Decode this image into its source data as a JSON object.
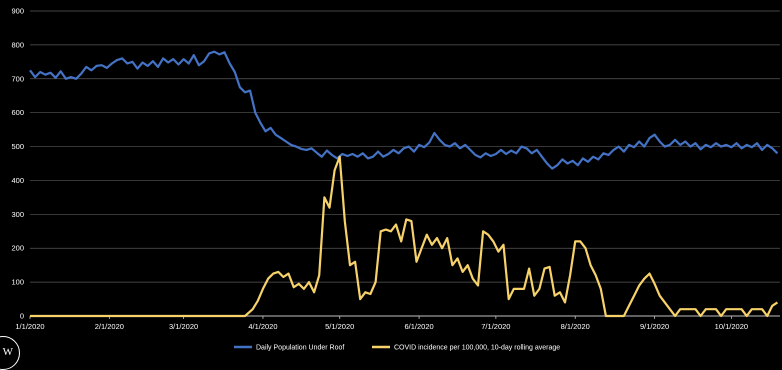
{
  "chart_data": {
    "type": "line",
    "title": "",
    "xlabel": "",
    "ylabel": "",
    "ylim": [
      0,
      900
    ],
    "yticks": [
      0,
      100,
      200,
      300,
      400,
      500,
      600,
      700,
      800,
      900
    ],
    "xlim": [
      "2020-01-01",
      "2020-10-20"
    ],
    "xticks": [
      {
        "date": "2020-01-01",
        "label": "1/1/2020"
      },
      {
        "date": "2020-02-01",
        "label": "2/1/2020"
      },
      {
        "date": "2020-03-01",
        "label": "3/1/2020"
      },
      {
        "date": "2020-04-01",
        "label": "4/1/2020"
      },
      {
        "date": "2020-05-01",
        "label": "5/1/2020"
      },
      {
        "date": "2020-06-01",
        "label": "6/1/2020"
      },
      {
        "date": "2020-07-01",
        "label": "7/1/2020"
      },
      {
        "date": "2020-08-01",
        "label": "8/1/2020"
      },
      {
        "date": "2020-09-01",
        "label": "9/1/2020"
      },
      {
        "date": "2020-10-01",
        "label": "10/1/2020"
      }
    ],
    "grid": "horizontal",
    "legend_position": "bottom",
    "series": [
      {
        "name": "Daily Population Under Roof",
        "color": "#4472C4",
        "points": [
          [
            "2020-01-01",
            725
          ],
          [
            "2020-01-03",
            705
          ],
          [
            "2020-01-05",
            720
          ],
          [
            "2020-01-07",
            712
          ],
          [
            "2020-01-09",
            718
          ],
          [
            "2020-01-11",
            703
          ],
          [
            "2020-01-13",
            722
          ],
          [
            "2020-01-15",
            700
          ],
          [
            "2020-01-17",
            705
          ],
          [
            "2020-01-19",
            700
          ],
          [
            "2020-01-21",
            715
          ],
          [
            "2020-01-23",
            735
          ],
          [
            "2020-01-25",
            725
          ],
          [
            "2020-01-27",
            738
          ],
          [
            "2020-01-29",
            740
          ],
          [
            "2020-01-31",
            732
          ],
          [
            "2020-02-02",
            745
          ],
          [
            "2020-02-04",
            755
          ],
          [
            "2020-02-06",
            760
          ],
          [
            "2020-02-08",
            745
          ],
          [
            "2020-02-10",
            750
          ],
          [
            "2020-02-12",
            730
          ],
          [
            "2020-02-14",
            748
          ],
          [
            "2020-02-16",
            738
          ],
          [
            "2020-02-18",
            752
          ],
          [
            "2020-02-20",
            735
          ],
          [
            "2020-02-22",
            760
          ],
          [
            "2020-02-24",
            748
          ],
          [
            "2020-02-26",
            758
          ],
          [
            "2020-02-28",
            742
          ],
          [
            "2020-03-01",
            758
          ],
          [
            "2020-03-03",
            745
          ],
          [
            "2020-03-05",
            770
          ],
          [
            "2020-03-07",
            740
          ],
          [
            "2020-03-09",
            752
          ],
          [
            "2020-03-11",
            775
          ],
          [
            "2020-03-13",
            780
          ],
          [
            "2020-03-15",
            772
          ],
          [
            "2020-03-17",
            778
          ],
          [
            "2020-03-19",
            745
          ],
          [
            "2020-03-21",
            720
          ],
          [
            "2020-03-23",
            675
          ],
          [
            "2020-03-25",
            660
          ],
          [
            "2020-03-27",
            665
          ],
          [
            "2020-03-29",
            600
          ],
          [
            "2020-03-31",
            570
          ],
          [
            "2020-04-02",
            545
          ],
          [
            "2020-04-04",
            555
          ],
          [
            "2020-04-06",
            535
          ],
          [
            "2020-04-08",
            525
          ],
          [
            "2020-04-10",
            515
          ],
          [
            "2020-04-12",
            505
          ],
          [
            "2020-04-14",
            500
          ],
          [
            "2020-04-16",
            493
          ],
          [
            "2020-04-18",
            490
          ],
          [
            "2020-04-20",
            495
          ],
          [
            "2020-04-22",
            482
          ],
          [
            "2020-04-24",
            470
          ],
          [
            "2020-04-26",
            488
          ],
          [
            "2020-04-28",
            475
          ],
          [
            "2020-04-30",
            465
          ],
          [
            "2020-05-02",
            478
          ],
          [
            "2020-05-04",
            472
          ],
          [
            "2020-05-06",
            478
          ],
          [
            "2020-05-08",
            470
          ],
          [
            "2020-05-10",
            480
          ],
          [
            "2020-05-12",
            465
          ],
          [
            "2020-05-14",
            470
          ],
          [
            "2020-05-16",
            485
          ],
          [
            "2020-05-18",
            470
          ],
          [
            "2020-05-20",
            478
          ],
          [
            "2020-05-22",
            490
          ],
          [
            "2020-05-24",
            480
          ],
          [
            "2020-05-26",
            495
          ],
          [
            "2020-05-28",
            500
          ],
          [
            "2020-05-30",
            485
          ],
          [
            "2020-06-01",
            505
          ],
          [
            "2020-06-03",
            498
          ],
          [
            "2020-06-05",
            512
          ],
          [
            "2020-06-07",
            540
          ],
          [
            "2020-06-09",
            520
          ],
          [
            "2020-06-11",
            505
          ],
          [
            "2020-06-13",
            500
          ],
          [
            "2020-06-15",
            510
          ],
          [
            "2020-06-17",
            495
          ],
          [
            "2020-06-19",
            505
          ],
          [
            "2020-06-21",
            490
          ],
          [
            "2020-06-23",
            475
          ],
          [
            "2020-06-25",
            468
          ],
          [
            "2020-06-27",
            480
          ],
          [
            "2020-06-29",
            472
          ],
          [
            "2020-07-01",
            478
          ],
          [
            "2020-07-03",
            490
          ],
          [
            "2020-07-05",
            478
          ],
          [
            "2020-07-07",
            488
          ],
          [
            "2020-07-09",
            480
          ],
          [
            "2020-07-11",
            500
          ],
          [
            "2020-07-13",
            495
          ],
          [
            "2020-07-15",
            480
          ],
          [
            "2020-07-17",
            490
          ],
          [
            "2020-07-19",
            470
          ],
          [
            "2020-07-21",
            450
          ],
          [
            "2020-07-23",
            435
          ],
          [
            "2020-07-25",
            445
          ],
          [
            "2020-07-27",
            462
          ],
          [
            "2020-07-29",
            450
          ],
          [
            "2020-07-31",
            458
          ],
          [
            "2020-08-02",
            445
          ],
          [
            "2020-08-04",
            465
          ],
          [
            "2020-08-06",
            455
          ],
          [
            "2020-08-08",
            470
          ],
          [
            "2020-08-10",
            462
          ],
          [
            "2020-08-12",
            480
          ],
          [
            "2020-08-14",
            475
          ],
          [
            "2020-08-16",
            490
          ],
          [
            "2020-08-18",
            500
          ],
          [
            "2020-08-20",
            485
          ],
          [
            "2020-08-22",
            505
          ],
          [
            "2020-08-24",
            498
          ],
          [
            "2020-08-26",
            515
          ],
          [
            "2020-08-28",
            500
          ],
          [
            "2020-08-30",
            525
          ],
          [
            "2020-09-01",
            535
          ],
          [
            "2020-09-03",
            515
          ],
          [
            "2020-09-05",
            500
          ],
          [
            "2020-09-07",
            505
          ],
          [
            "2020-09-09",
            520
          ],
          [
            "2020-09-11",
            505
          ],
          [
            "2020-09-13",
            515
          ],
          [
            "2020-09-15",
            500
          ],
          [
            "2020-09-17",
            510
          ],
          [
            "2020-09-19",
            492
          ],
          [
            "2020-09-21",
            505
          ],
          [
            "2020-09-23",
            498
          ],
          [
            "2020-09-25",
            510
          ],
          [
            "2020-09-27",
            500
          ],
          [
            "2020-09-29",
            505
          ],
          [
            "2020-10-01",
            498
          ],
          [
            "2020-10-03",
            510
          ],
          [
            "2020-10-05",
            495
          ],
          [
            "2020-10-07",
            505
          ],
          [
            "2020-10-09",
            498
          ],
          [
            "2020-10-11",
            510
          ],
          [
            "2020-10-13",
            490
          ],
          [
            "2020-10-15",
            505
          ],
          [
            "2020-10-17",
            495
          ],
          [
            "2020-10-19",
            480
          ]
        ]
      },
      {
        "name": "COVID incidence per 100,000, 10-day rolling average",
        "color": "#F7D26A",
        "points": [
          [
            "2020-01-01",
            0
          ],
          [
            "2020-03-25",
            0
          ],
          [
            "2020-03-28",
            20
          ],
          [
            "2020-03-30",
            45
          ],
          [
            "2020-04-01",
            80
          ],
          [
            "2020-04-03",
            110
          ],
          [
            "2020-04-05",
            125
          ],
          [
            "2020-04-07",
            130
          ],
          [
            "2020-04-09",
            115
          ],
          [
            "2020-04-11",
            125
          ],
          [
            "2020-04-13",
            85
          ],
          [
            "2020-04-15",
            95
          ],
          [
            "2020-04-17",
            80
          ],
          [
            "2020-04-19",
            100
          ],
          [
            "2020-04-21",
            70
          ],
          [
            "2020-04-23",
            120
          ],
          [
            "2020-04-25",
            350
          ],
          [
            "2020-04-27",
            320
          ],
          [
            "2020-04-29",
            430
          ],
          [
            "2020-05-01",
            470
          ],
          [
            "2020-05-03",
            280
          ],
          [
            "2020-05-05",
            150
          ],
          [
            "2020-05-07",
            160
          ],
          [
            "2020-05-09",
            50
          ],
          [
            "2020-05-11",
            70
          ],
          [
            "2020-05-13",
            65
          ],
          [
            "2020-05-15",
            100
          ],
          [
            "2020-05-17",
            250
          ],
          [
            "2020-05-19",
            255
          ],
          [
            "2020-05-21",
            250
          ],
          [
            "2020-05-23",
            270
          ],
          [
            "2020-05-25",
            220
          ],
          [
            "2020-05-27",
            285
          ],
          [
            "2020-05-29",
            280
          ],
          [
            "2020-05-31",
            160
          ],
          [
            "2020-06-02",
            200
          ],
          [
            "2020-06-04",
            240
          ],
          [
            "2020-06-06",
            210
          ],
          [
            "2020-06-08",
            230
          ],
          [
            "2020-06-10",
            200
          ],
          [
            "2020-06-12",
            230
          ],
          [
            "2020-06-14",
            150
          ],
          [
            "2020-06-16",
            170
          ],
          [
            "2020-06-18",
            130
          ],
          [
            "2020-06-20",
            150
          ],
          [
            "2020-06-22",
            110
          ],
          [
            "2020-06-24",
            90
          ],
          [
            "2020-06-26",
            250
          ],
          [
            "2020-06-28",
            240
          ],
          [
            "2020-06-30",
            220
          ],
          [
            "2020-07-02",
            190
          ],
          [
            "2020-07-04",
            210
          ],
          [
            "2020-07-06",
            50
          ],
          [
            "2020-07-08",
            80
          ],
          [
            "2020-07-10",
            80
          ],
          [
            "2020-07-12",
            80
          ],
          [
            "2020-07-14",
            140
          ],
          [
            "2020-07-16",
            60
          ],
          [
            "2020-07-18",
            80
          ],
          [
            "2020-07-20",
            140
          ],
          [
            "2020-07-22",
            145
          ],
          [
            "2020-07-24",
            60
          ],
          [
            "2020-07-26",
            70
          ],
          [
            "2020-07-28",
            40
          ],
          [
            "2020-07-30",
            120
          ],
          [
            "2020-08-01",
            220
          ],
          [
            "2020-08-03",
            220
          ],
          [
            "2020-08-05",
            200
          ],
          [
            "2020-08-07",
            150
          ],
          [
            "2020-08-09",
            120
          ],
          [
            "2020-08-11",
            80
          ],
          [
            "2020-08-13",
            0
          ],
          [
            "2020-08-20",
            0
          ],
          [
            "2020-08-22",
            30
          ],
          [
            "2020-08-24",
            60
          ],
          [
            "2020-08-26",
            90
          ],
          [
            "2020-08-28",
            110
          ],
          [
            "2020-08-30",
            125
          ],
          [
            "2020-09-01",
            95
          ],
          [
            "2020-09-03",
            60
          ],
          [
            "2020-09-05",
            40
          ],
          [
            "2020-09-07",
            20
          ],
          [
            "2020-09-09",
            0
          ],
          [
            "2020-09-11",
            20
          ],
          [
            "2020-09-13",
            20
          ],
          [
            "2020-09-15",
            20
          ],
          [
            "2020-09-17",
            20
          ],
          [
            "2020-09-19",
            0
          ],
          [
            "2020-09-21",
            20
          ],
          [
            "2020-09-23",
            20
          ],
          [
            "2020-09-25",
            20
          ],
          [
            "2020-09-27",
            0
          ],
          [
            "2020-09-29",
            20
          ],
          [
            "2020-10-01",
            20
          ],
          [
            "2020-10-03",
            20
          ],
          [
            "2020-10-05",
            20
          ],
          [
            "2020-10-07",
            0
          ],
          [
            "2020-10-09",
            20
          ],
          [
            "2020-10-11",
            20
          ],
          [
            "2020-10-13",
            20
          ],
          [
            "2020-10-15",
            0
          ],
          [
            "2020-10-17",
            30
          ],
          [
            "2020-10-19",
            40
          ]
        ]
      }
    ]
  }
}
